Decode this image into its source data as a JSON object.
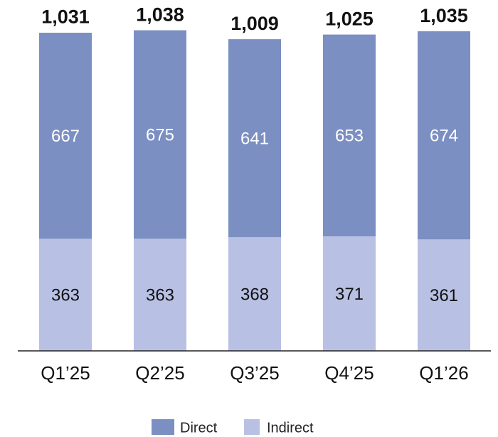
{
  "chart_data": {
    "type": "stacked-bar",
    "categories": [
      "Q1’25",
      "Q2’25",
      "Q3’25",
      "Q4’25",
      "Q1’26"
    ],
    "series": [
      {
        "name": "Direct",
        "color": "#7b8fc2",
        "values": [
          667,
          675,
          641,
          653,
          674
        ]
      },
      {
        "name": "Indirect",
        "color": "#b8c0e4",
        "values": [
          363,
          363,
          368,
          371,
          361
        ]
      }
    ],
    "totals": [
      1031,
      1038,
      1009,
      1025,
      1035
    ],
    "total_labels": [
      "1,031",
      "1,038",
      "1,009",
      "1,025",
      "1,035"
    ]
  }
}
